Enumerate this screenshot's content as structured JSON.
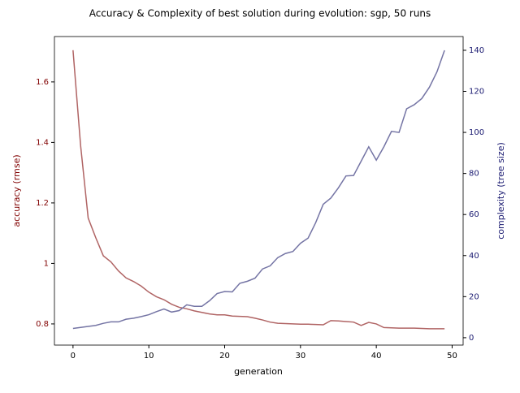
{
  "chart_data": {
    "type": "line",
    "title": "Accuracy & Complexity of best solution during evolution: sgp, 50 runs",
    "x_label": "generation",
    "y_label": "accuracy (rmse)",
    "y2_label": "complexity (tree size)",
    "y_label_color": "#800000",
    "y2_label_color": "#191970",
    "x": [
      0,
      1,
      2,
      3,
      4,
      5,
      6,
      7,
      8,
      9,
      10,
      11,
      12,
      13,
      14,
      15,
      16,
      17,
      18,
      19,
      20,
      21,
      22,
      23,
      24,
      25,
      26,
      27,
      28,
      29,
      30,
      31,
      32,
      33,
      34,
      35,
      36,
      37,
      38,
      39,
      40,
      41,
      42,
      43,
      44,
      45,
      46,
      47,
      48,
      49
    ],
    "series": [
      {
        "name": "accuracy",
        "color": "#b06464",
        "axis": "y",
        "values": [
          1.705,
          1.39,
          1.15,
          1.085,
          1.025,
          1.005,
          0.975,
          0.952,
          0.94,
          0.925,
          0.905,
          0.89,
          0.88,
          0.865,
          0.855,
          0.85,
          0.843,
          0.838,
          0.833,
          0.83,
          0.83,
          0.826,
          0.825,
          0.824,
          0.819,
          0.813,
          0.806,
          0.802,
          0.801,
          0.8,
          0.799,
          0.799,
          0.798,
          0.797,
          0.811,
          0.81,
          0.808,
          0.806,
          0.795,
          0.805,
          0.8,
          0.788,
          0.787,
          0.786,
          0.786,
          0.786,
          0.785,
          0.784,
          0.784,
          0.784
        ]
      },
      {
        "name": "complexity",
        "color": "#7474a4",
        "axis": "y2",
        "values": [
          4.5,
          5,
          5.5,
          6,
          7,
          7.7,
          7.7,
          9,
          9.5,
          10.3,
          11.2,
          12.7,
          14,
          12.5,
          13.2,
          16,
          15.3,
          15.3,
          18,
          21.5,
          22.5,
          22.3,
          26.5,
          27.5,
          29,
          33.5,
          35,
          39,
          41,
          42,
          46,
          48.5,
          56,
          65,
          68,
          73,
          78.8,
          79,
          86,
          93,
          86.5,
          93,
          100.5,
          100,
          111.5,
          113.5,
          116.5,
          122,
          129.5,
          140
        ]
      }
    ],
    "xlim": [
      -2.45,
      51.45
    ],
    "xticks": [
      0,
      10,
      20,
      30,
      40,
      50
    ],
    "ylim": [
      0.73,
      1.75
    ],
    "yticks": [
      0.8,
      1.0,
      1.2,
      1.4,
      1.6
    ],
    "y2lim": [
      -3.6,
      146.7
    ],
    "y2ticks": [
      0,
      20,
      40,
      60,
      80,
      100,
      120,
      140
    ]
  }
}
